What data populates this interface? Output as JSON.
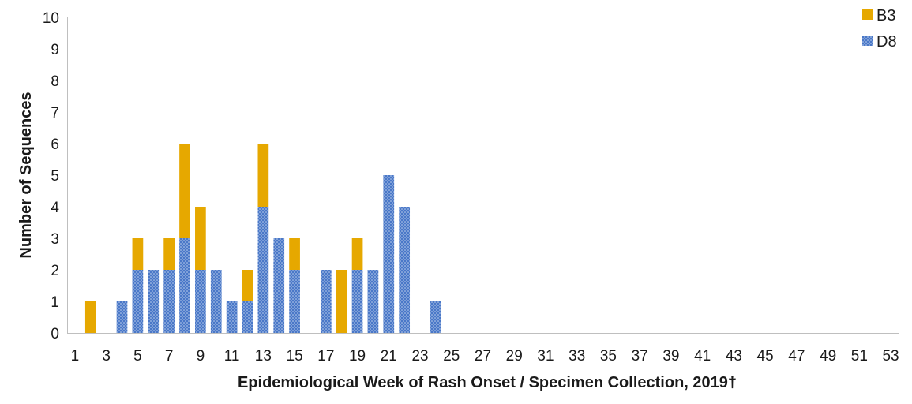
{
  "chart_data": {
    "type": "bar",
    "stacked": true,
    "x": [
      1,
      2,
      3,
      4,
      5,
      6,
      7,
      8,
      9,
      10,
      11,
      12,
      13,
      14,
      15,
      16,
      17,
      18,
      19,
      20,
      21,
      22,
      23,
      24,
      25,
      26,
      27,
      28,
      29,
      30,
      31,
      32,
      33,
      34,
      35,
      36,
      37,
      38,
      39,
      40,
      41,
      42,
      43,
      44,
      45,
      46,
      47,
      48,
      49,
      50,
      51,
      52,
      53
    ],
    "x_tick_labels": [
      "1",
      "3",
      "5",
      "7",
      "9",
      "11",
      "13",
      "15",
      "17",
      "19",
      "21",
      "23",
      "25",
      "27",
      "29",
      "31",
      "33",
      "35",
      "37",
      "39",
      "41",
      "43",
      "45",
      "47",
      "49",
      "51",
      "53"
    ],
    "series": [
      {
        "name": "D8",
        "color": "#4472c4",
        "pattern": "dotted",
        "values": [
          0,
          0,
          0,
          1,
          2,
          2,
          2,
          3,
          2,
          2,
          1,
          1,
          4,
          3,
          2,
          0,
          2,
          0,
          2,
          2,
          5,
          4,
          0,
          1,
          0,
          0,
          0,
          0,
          0,
          0,
          0,
          0,
          0,
          0,
          0,
          0,
          0,
          0,
          0,
          0,
          0,
          0,
          0,
          0,
          0,
          0,
          0,
          0,
          0,
          0,
          0,
          0,
          0
        ]
      },
      {
        "name": "B3",
        "color": "#e6a800",
        "pattern": "solid",
        "values": [
          0,
          1,
          0,
          0,
          1,
          0,
          1,
          3,
          2,
          0,
          0,
          1,
          2,
          0,
          1,
          0,
          0,
          2,
          1,
          0,
          0,
          0,
          0,
          0,
          0,
          0,
          0,
          0,
          0,
          0,
          0,
          0,
          0,
          0,
          0,
          0,
          0,
          0,
          0,
          0,
          0,
          0,
          0,
          0,
          0,
          0,
          0,
          0,
          0,
          0,
          0,
          0,
          0
        ]
      }
    ],
    "legend_order": [
      "B3",
      "D8"
    ],
    "legend_position": "top-right",
    "ylim": [
      0,
      10
    ],
    "y_ticks": [
      0,
      1,
      2,
      3,
      4,
      5,
      6,
      7,
      8,
      9,
      10
    ],
    "xlabel": "Epidemiological Week of Rash Onset / Specimen Collection, 2019†",
    "ylabel": "Number of Sequences",
    "grid": false
  }
}
